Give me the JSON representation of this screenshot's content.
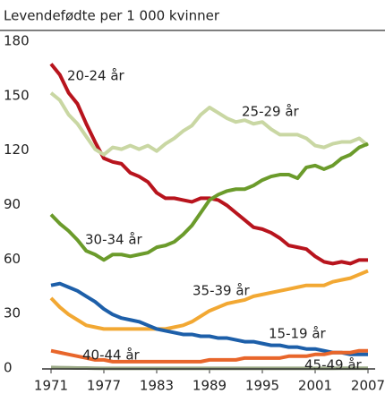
{
  "chart_data": {
    "type": "line",
    "title": "Levendefødte per 1 000 kvinner",
    "x": [
      1971,
      1972,
      1973,
      1974,
      1975,
      1976,
      1977,
      1978,
      1979,
      1980,
      1981,
      1982,
      1983,
      1984,
      1985,
      1986,
      1987,
      1988,
      1989,
      1990,
      1991,
      1992,
      1993,
      1994,
      1995,
      1996,
      1997,
      1998,
      1999,
      2000,
      2001,
      2002,
      2003,
      2004,
      2005,
      2006,
      2007
    ],
    "xlim": [
      1971,
      2007
    ],
    "xticks": [
      1971,
      1977,
      1983,
      1989,
      1995,
      2001,
      2007
    ],
    "ylim": [
      0,
      180
    ],
    "yticks": [
      0,
      30,
      60,
      90,
      120,
      150,
      180
    ],
    "grid": false,
    "series": [
      {
        "name": "20-24 år",
        "color": "#b8141d",
        "values": [
          168,
          162,
          152,
          146,
          135,
          125,
          116,
          114,
          113,
          108,
          106,
          103,
          97,
          94,
          94,
          93,
          92,
          94,
          94,
          93,
          90,
          86,
          82,
          78,
          77,
          75,
          72,
          68,
          67,
          66,
          62,
          59,
          58,
          59,
          58,
          60,
          60
        ]
      },
      {
        "name": "25-29 år",
        "color": "#c9d7a3",
        "values": [
          152,
          148,
          140,
          135,
          128,
          121,
          118,
          122,
          121,
          123,
          121,
          123,
          120,
          124,
          127,
          131,
          134,
          140,
          144,
          141,
          138,
          136,
          137,
          135,
          136,
          132,
          129,
          129,
          129,
          127,
          123,
          122,
          124,
          125,
          125,
          127,
          123
        ]
      },
      {
        "name": "30-34 år",
        "color": "#6b9b2b",
        "values": [
          85,
          80,
          76,
          71,
          65,
          63,
          60,
          63,
          63,
          62,
          63,
          64,
          67,
          68,
          70,
          74,
          79,
          86,
          93,
          96,
          98,
          99,
          99,
          101,
          104,
          106,
          107,
          107,
          105,
          111,
          112,
          110,
          112,
          116,
          118,
          122,
          124
        ]
      },
      {
        "name": "35-39 år",
        "color": "#f2a833",
        "values": [
          39,
          34,
          30,
          27,
          24,
          23,
          22,
          22,
          22,
          22,
          22,
          22,
          22,
          22,
          23,
          24,
          26,
          29,
          32,
          34,
          36,
          37,
          38,
          40,
          41,
          42,
          43,
          44,
          45,
          46,
          46,
          46,
          48,
          49,
          50,
          52,
          54
        ]
      },
      {
        "name": "15-19 år",
        "color": "#1d5fa9",
        "values": [
          46,
          47,
          45,
          43,
          40,
          37,
          33,
          30,
          28,
          27,
          26,
          24,
          22,
          21,
          20,
          19,
          19,
          18,
          18,
          17,
          17,
          16,
          15,
          15,
          14,
          13,
          13,
          12,
          12,
          11,
          11,
          10,
          9,
          9,
          8,
          8,
          8
        ]
      },
      {
        "name": "40-44 år",
        "color": "#e8662b",
        "values": [
          10,
          9,
          8,
          7,
          6,
          5,
          5,
          4,
          4,
          4,
          4,
          4,
          4,
          4,
          4,
          4,
          4,
          4,
          5,
          5,
          5,
          5,
          6,
          6,
          6,
          6,
          6,
          7,
          7,
          7,
          8,
          8,
          9,
          9,
          9,
          10,
          10
        ]
      },
      {
        "name": "45-49 år",
        "color": "#9aa985",
        "values": [
          0.8,
          0.7,
          0.6,
          0.5,
          0.5,
          0.4,
          0.3,
          0.3,
          0.3,
          0.3,
          0.3,
          0.3,
          0.3,
          0.3,
          0.3,
          0.3,
          0.3,
          0.3,
          0.3,
          0.3,
          0.3,
          0.3,
          0.3,
          0.3,
          0.3,
          0.3,
          0.3,
          0.3,
          0.3,
          0.3,
          0.3,
          0.3,
          0.3,
          0.4,
          0.4,
          0.4,
          0.4
        ]
      }
    ]
  }
}
